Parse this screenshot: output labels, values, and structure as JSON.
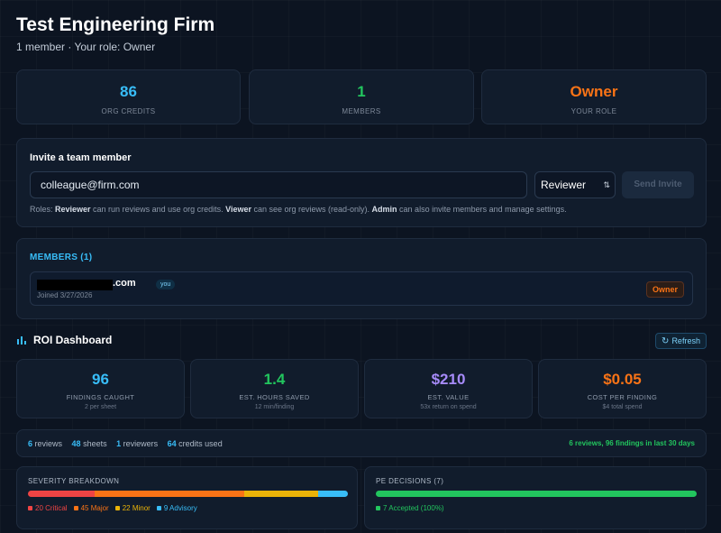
{
  "header": {
    "title": "Test Engineering Firm",
    "subtitle": "1 member · Your role: Owner"
  },
  "stats": [
    {
      "value": "86",
      "label": "ORG CREDITS",
      "color": "#38bdf8"
    },
    {
      "value": "1",
      "label": "MEMBERS",
      "color": "#22c55e"
    },
    {
      "value": "Owner",
      "label": "YOUR ROLE",
      "color": "#f97316"
    }
  ],
  "invite": {
    "heading": "Invite a team member",
    "email_value": "colleague@firm.com",
    "role_value": "Reviewer",
    "send_label": "Send Invite",
    "roles_prefix": "Roles: ",
    "role_reviewer": "Reviewer",
    "roles_text_1": " can run reviews and use org credits. ",
    "role_viewer": "Viewer",
    "roles_text_2": " can see org reviews (read-only). ",
    "role_admin": "Admin",
    "roles_text_3": " can also invite members and manage settings."
  },
  "members": {
    "heading": "MEMBERS (1)",
    "rows": [
      {
        "email_tail": ".com",
        "you": "you",
        "joined": "Joined 3/27/2026",
        "role": "Owner"
      }
    ]
  },
  "roi": {
    "heading": "ROI Dashboard",
    "refresh_label": "Refresh",
    "kpis": [
      {
        "value": "96",
        "label": "FINDINGS CAUGHT",
        "sub": "2 per sheet",
        "color": "#38bdf8"
      },
      {
        "value": "1.4",
        "label": "EST. HOURS SAVED",
        "sub": "12 min/finding",
        "color": "#22c55e"
      },
      {
        "value": "$210",
        "label": "EST. VALUE",
        "sub": "53x return on spend",
        "color": "#a78bfa"
      },
      {
        "value": "$0.05",
        "label": "COST PER FINDING",
        "sub": "$4 total spend",
        "color": "#f97316"
      }
    ],
    "usage": {
      "reviews_n": "6",
      "reviews_l": " reviews",
      "sheets_n": "48",
      "sheets_l": " sheets",
      "reviewers_n": "1",
      "reviewers_l": " reviewers",
      "credits_n": "64",
      "credits_l": " credits used",
      "recent": "6 reviews, 96 findings in last 30 days"
    },
    "severity": {
      "heading": "SEVERITY BREAKDOWN",
      "items": [
        {
          "label": "20 Critical",
          "count": 20,
          "color": "#ef4444"
        },
        {
          "label": "45 Major",
          "count": 45,
          "color": "#f97316"
        },
        {
          "label": "22 Minor",
          "count": 22,
          "color": "#eab308"
        },
        {
          "label": "9 Advisory",
          "count": 9,
          "color": "#38bdf8"
        }
      ]
    },
    "pe": {
      "heading": "PE DECISIONS (7)",
      "items": [
        {
          "label": "7 Accepted (100%)",
          "count": 7,
          "color": "#22c55e"
        }
      ]
    }
  }
}
